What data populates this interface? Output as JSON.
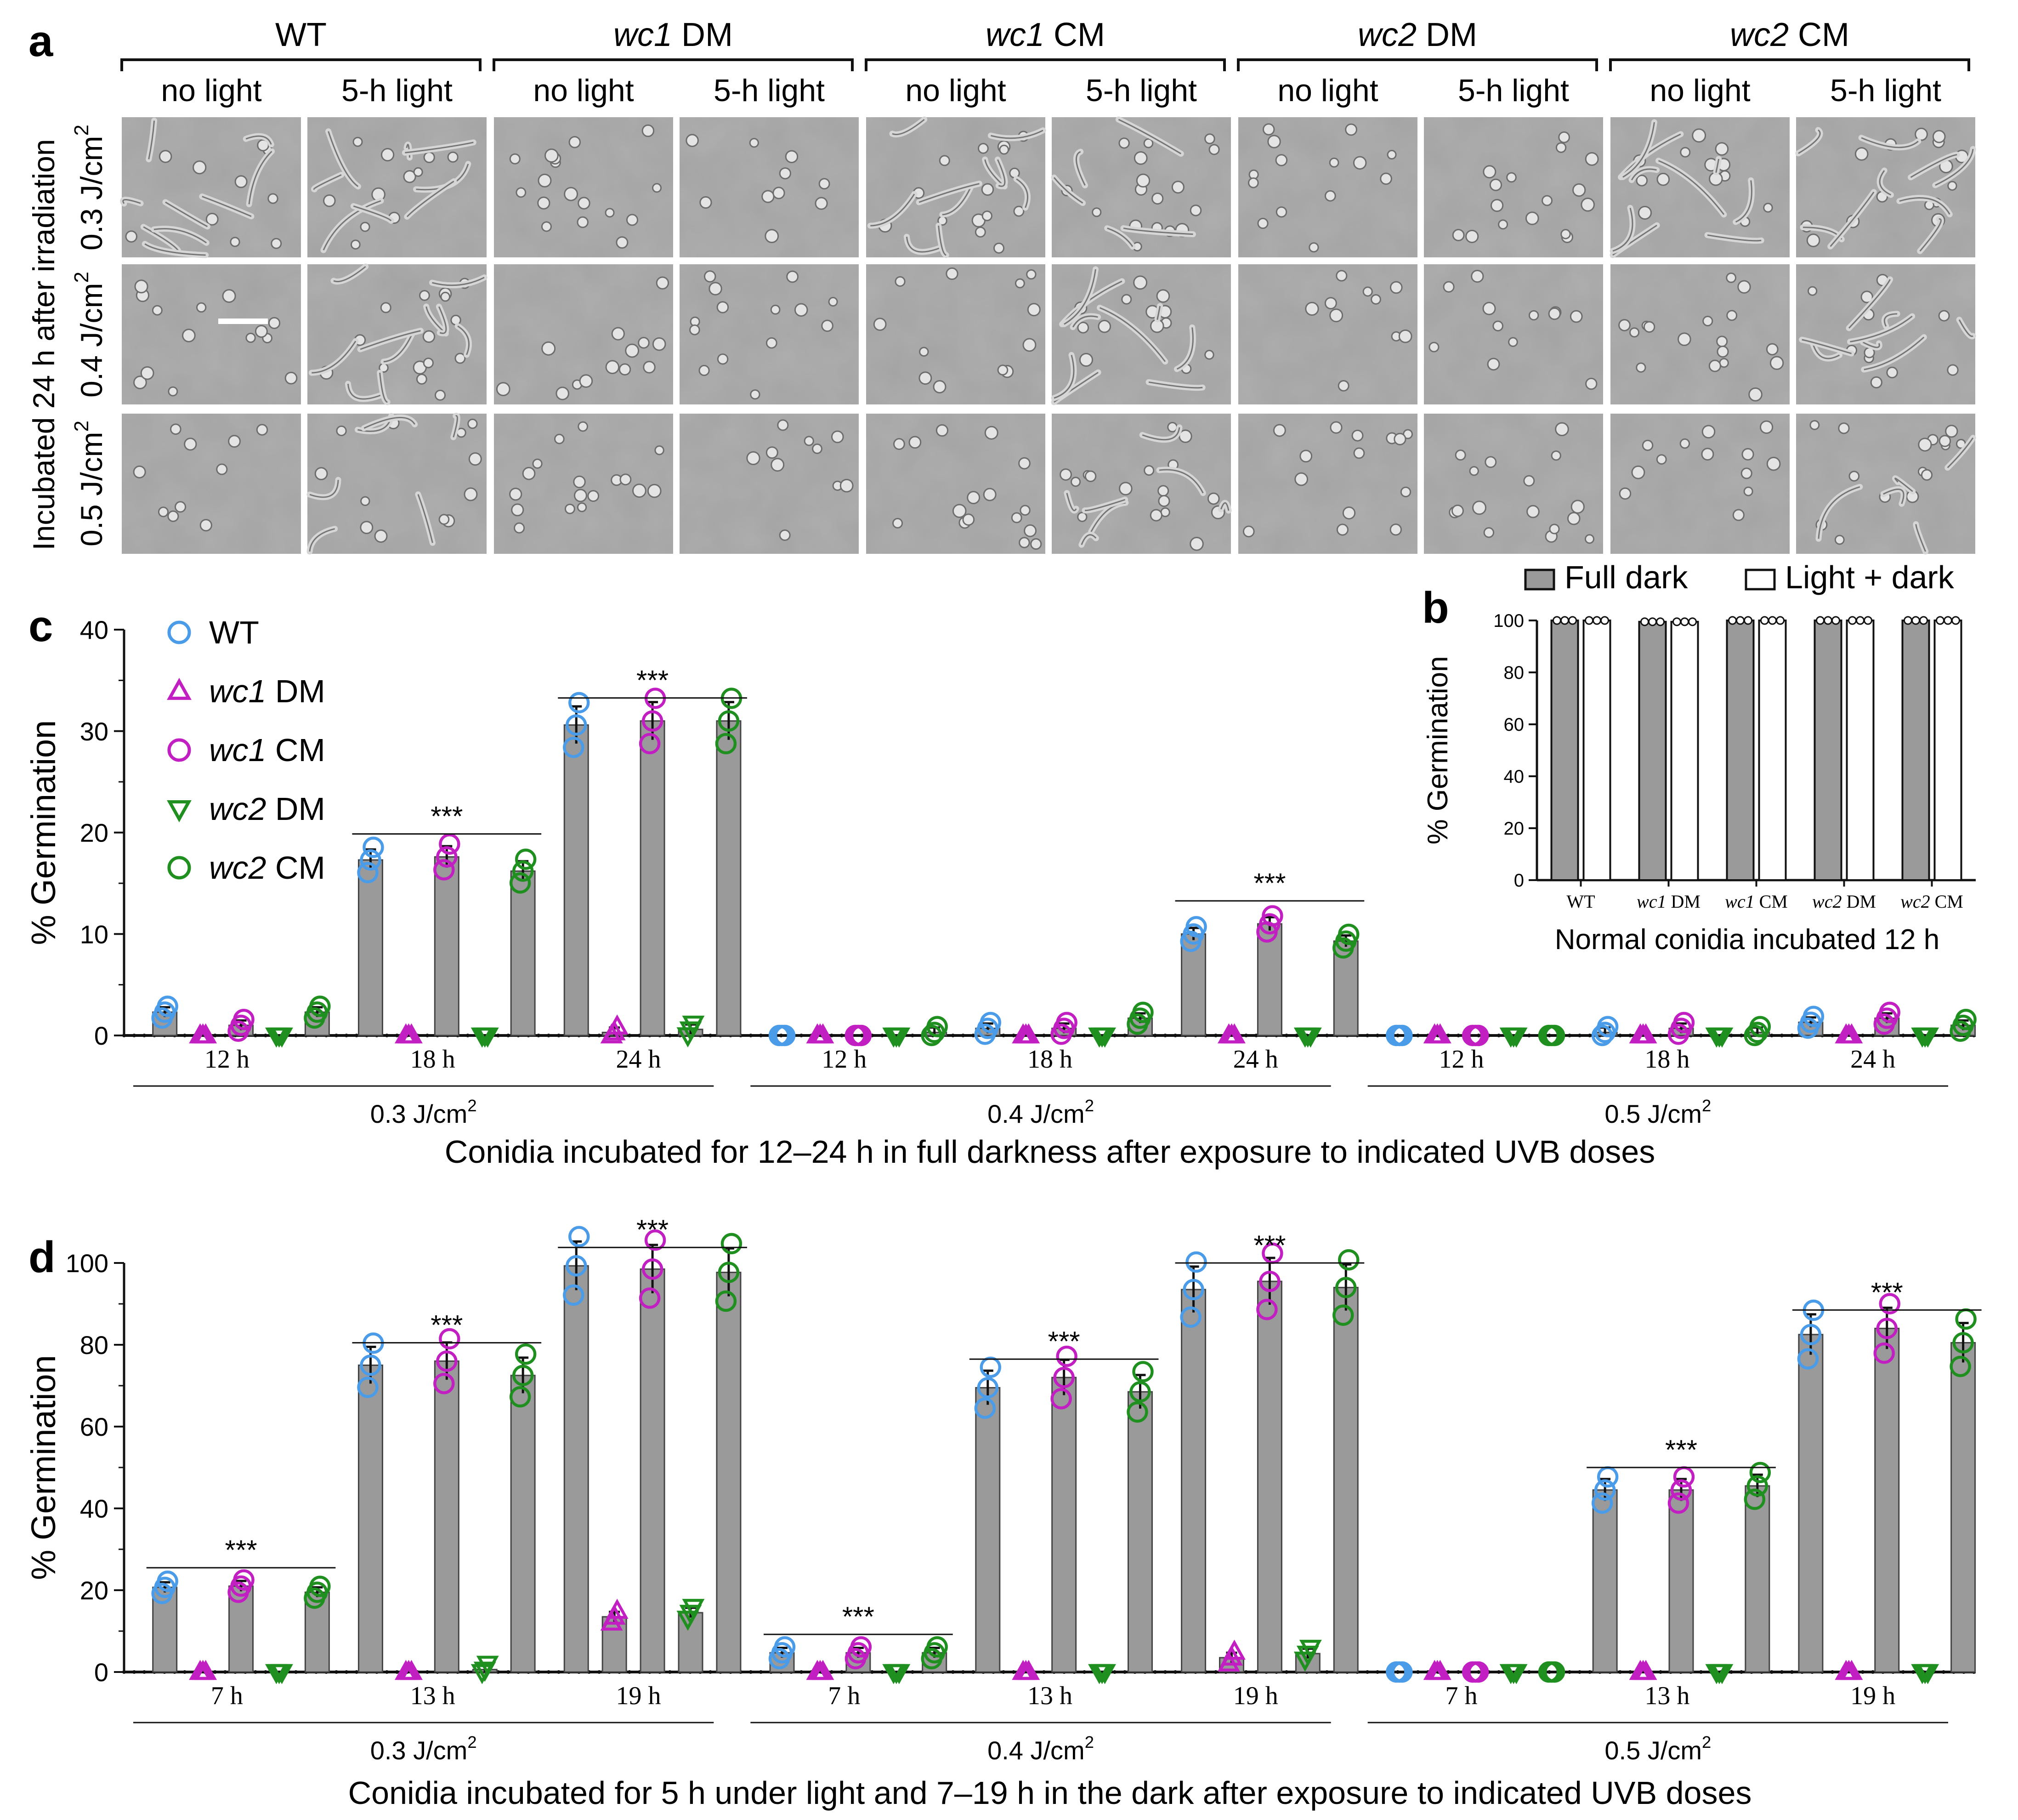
{
  "panel_a": {
    "letter": "a",
    "strains": [
      {
        "prefix": "WT",
        "suffix": ""
      },
      {
        "prefix": "wc1",
        "suffix": " DM"
      },
      {
        "prefix": "wc1",
        "suffix": " CM"
      },
      {
        "prefix": "wc2",
        "suffix": " DM"
      },
      {
        "prefix": "wc2",
        "suffix": " CM"
      }
    ],
    "conditions": [
      "no light",
      "5-h light"
    ],
    "row_title": "Incubated 24 h after irradiation",
    "doses": [
      "0.3 J/cm",
      "0.4 J/cm",
      "0.5 J/cm"
    ],
    "dose_sup": "2"
  },
  "legend": [
    {
      "prefix": "WT",
      "suffix": "",
      "marker": "circle",
      "color": "#4a9be8"
    },
    {
      "prefix": "wc1",
      "suffix": " DM",
      "marker": "triangle-up",
      "color": "#c21fc2"
    },
    {
      "prefix": "wc1",
      "suffix": " CM",
      "marker": "circle",
      "color": "#c21fc2"
    },
    {
      "prefix": "wc2",
      "suffix": " DM",
      "marker": "triangle-down",
      "color": "#1f8f1f"
    },
    {
      "prefix": "wc2",
      "suffix": " CM",
      "marker": "circle",
      "color": "#1f8f1f"
    }
  ],
  "sig_label": "***",
  "dose_labels": [
    "0.3 J/cm",
    "0.4 J/cm",
    "0.5 J/cm"
  ],
  "dose_sup": "2",
  "bar_color": "#9a9a9a",
  "chart_data": [
    {
      "panel": "b",
      "type": "bar",
      "xlabel": "Normal conidia incubated 12 h",
      "ylabel": "% Germination",
      "ylim": [
        0,
        100
      ],
      "yticks": [
        0,
        20,
        40,
        60,
        80,
        100
      ],
      "categories": [
        {
          "prefix": "WT",
          "suffix": ""
        },
        {
          "prefix": "wc1",
          "suffix": " DM"
        },
        {
          "prefix": "wc1",
          "suffix": " CM"
        },
        {
          "prefix": "wc2",
          "suffix": " DM"
        },
        {
          "prefix": "wc2",
          "suffix": " CM"
        }
      ],
      "series": [
        {
          "name": "Full dark",
          "fill": "#9a9a9a",
          "values": [
            100,
            99.5,
            100,
            100,
            100
          ]
        },
        {
          "name": "Light + dark",
          "fill": "#ffffff",
          "values": [
            100,
            99.5,
            100,
            100,
            100
          ]
        }
      ],
      "legend_position": "top"
    },
    {
      "panel": "c",
      "type": "bar",
      "xlabel": "Conidia incubated for 12–24 h in full darkness after exposure to indicated UVB doses",
      "ylabel": "% Germination",
      "ylim": [
        0,
        40
      ],
      "yticks": [
        0,
        10,
        20,
        30,
        40
      ],
      "series_names": [
        "WT",
        "wc1 DM",
        "wc1 CM",
        "wc2 DM",
        "wc2 CM"
      ],
      "dose_groups": [
        {
          "dose": "0.3 J/cm2",
          "times": [
            {
              "time": "12 h",
              "means": [
                2.3,
                0,
                1,
                0,
                2.3
              ],
              "sig": false
            },
            {
              "time": "18 h",
              "means": [
                17.3,
                0,
                17.6,
                0,
                16.2
              ],
              "sig": true
            },
            {
              "time": "24 h",
              "means": [
                30.6,
                0.3,
                31,
                0.6,
                31
              ],
              "sig": true
            }
          ]
        },
        {
          "dose": "0.4 J/cm2",
          "times": [
            {
              "time": "12 h",
              "means": [
                0,
                0,
                0,
                0,
                0.3
              ],
              "sig": false
            },
            {
              "time": "18 h",
              "means": [
                0.7,
                0,
                0.7,
                0,
                1.7
              ],
              "sig": false
            },
            {
              "time": "24 h",
              "means": [
                10,
                0,
                11,
                0,
                9.3
              ],
              "sig": true
            }
          ]
        },
        {
          "dose": "0.5 J/cm2",
          "times": [
            {
              "time": "12 h",
              "means": [
                0,
                0,
                0,
                0,
                0
              ],
              "sig": false
            },
            {
              "time": "18 h",
              "means": [
                0.3,
                0,
                0.7,
                0,
                0.3
              ],
              "sig": false
            },
            {
              "time": "24 h",
              "means": [
                1.3,
                0,
                1.7,
                0,
                1
              ],
              "sig": false
            }
          ]
        }
      ]
    },
    {
      "panel": "d",
      "type": "bar",
      "xlabel": "Conidia incubated for 5 h under light and 7–19 h in the dark after exposure to indicated UVB doses",
      "ylabel": "% Germination",
      "ylim": [
        0,
        100
      ],
      "yticks": [
        0,
        20,
        40,
        60,
        80,
        100
      ],
      "series_names": [
        "WT",
        "wc1 DM",
        "wc1 CM",
        "wc2 DM",
        "wc2 CM"
      ],
      "dose_groups": [
        {
          "dose": "0.3 J/cm2",
          "times": [
            {
              "time": "7 h",
              "means": [
                20.7,
                0,
                21,
                0,
                19.5
              ],
              "sig": true
            },
            {
              "time": "13 h",
              "means": [
                75,
                0,
                76,
                0.6,
                72.5
              ],
              "sig": true
            },
            {
              "time": "19 h",
              "means": [
                99.3,
                13.5,
                98.5,
                14.5,
                97.7
              ],
              "sig": true
            }
          ]
        },
        {
          "dose": "0.4 J/cm2",
          "times": [
            {
              "time": "7 h",
              "means": [
                4.7,
                0,
                4.7,
                0,
                4.7
              ],
              "sig": true
            },
            {
              "time": "13 h",
              "means": [
                69.5,
                0,
                72,
                0,
                68.5
              ],
              "sig": true
            },
            {
              "time": "19 h",
              "means": [
                93.5,
                3.5,
                95.5,
                4.5,
                94
              ],
              "sig": true
            }
          ]
        },
        {
          "dose": "0.5 J/cm2",
          "times": [
            {
              "time": "7 h",
              "means": [
                0,
                0,
                0,
                0,
                0
              ],
              "sig": false
            },
            {
              "time": "13 h",
              "means": [
                44.5,
                0,
                44.5,
                0,
                45.5
              ],
              "sig": true
            },
            {
              "time": "19 h",
              "means": [
                82.5,
                0,
                84,
                0,
                80.5
              ],
              "sig": true
            }
          ]
        }
      ]
    }
  ]
}
